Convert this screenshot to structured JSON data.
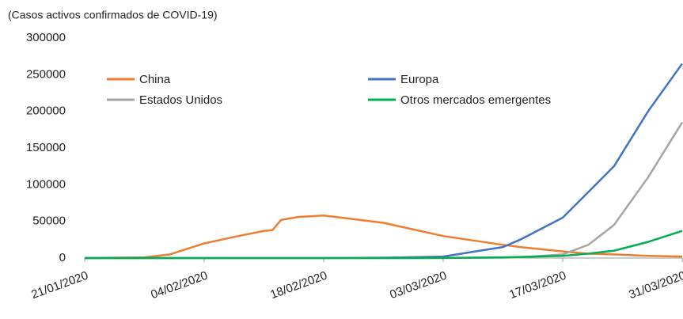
{
  "chart_data": {
    "type": "line",
    "title": "(Casos activos confirmados de COVID-19)",
    "x": [
      "21/01/2020",
      "28/01/2020",
      "31/01/2020",
      "04/02/2020",
      "08/02/2020",
      "11/02/2020",
      "12/02/2020",
      "13/02/2020",
      "15/02/2020",
      "18/02/2020",
      "25/02/2020",
      "03/03/2020",
      "10/03/2020",
      "12/03/2020",
      "17/03/2020",
      "20/03/2020",
      "23/03/2020",
      "27/03/2020",
      "31/03/2020"
    ],
    "series": [
      {
        "name": "China",
        "color": "#ed7d31",
        "values": [
          0,
          1000,
          5000,
          20000,
          30000,
          37000,
          38000,
          52000,
          56000,
          58000,
          48000,
          30000,
          18000,
          15000,
          9000,
          6000,
          5000,
          3000,
          2000
        ]
      },
      {
        "name": "Europa",
        "color": "#4472c4",
        "values": [
          0,
          0,
          0,
          0,
          0,
          0,
          0,
          0,
          0,
          0,
          500,
          2000,
          15000,
          25000,
          55000,
          90000,
          125000,
          200000,
          265000
        ]
      },
      {
        "name": "Estados Unidos",
        "color": "#a5a5a5",
        "values": [
          0,
          0,
          0,
          0,
          0,
          0,
          0,
          0,
          0,
          0,
          0,
          100,
          500,
          1000,
          5000,
          18000,
          45000,
          110000,
          185000
        ]
      },
      {
        "name": "Otros mercados emergentes",
        "color": "#00b050",
        "values": [
          0,
          0,
          0,
          0,
          0,
          0,
          0,
          0,
          0,
          0,
          0,
          200,
          1000,
          1500,
          3000,
          6000,
          10000,
          22000,
          37000
        ]
      }
    ],
    "xlim": [
      "21/01/2020",
      "31/03/2020"
    ],
    "xticks": [
      "21/01/2020",
      "04/02/2020",
      "18/02/2020",
      "03/03/2020",
      "17/03/2020",
      "31/03/2020"
    ],
    "ylim": [
      0,
      300000
    ],
    "yticks": [
      0,
      50000,
      100000,
      150000,
      200000,
      250000,
      300000
    ]
  }
}
